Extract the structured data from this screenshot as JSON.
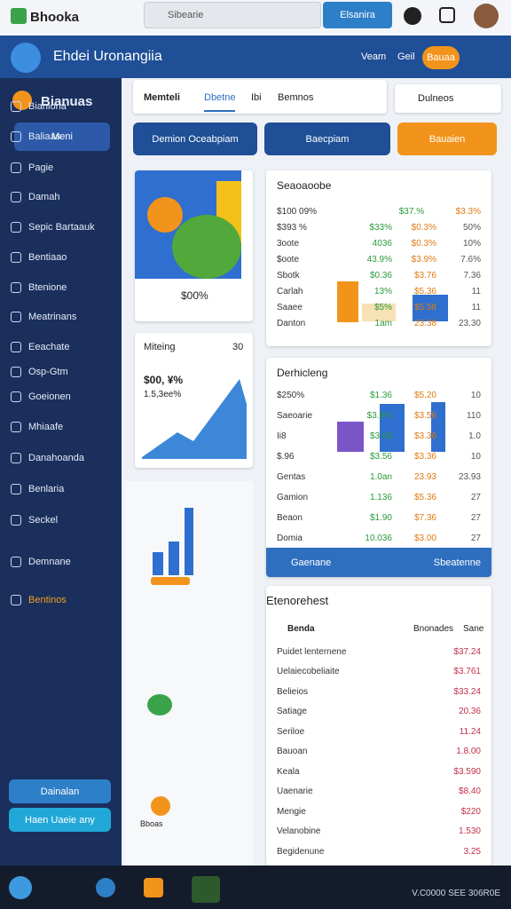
{
  "topbar": {
    "brand": "Bhooka",
    "search": "Sibearie",
    "button": "Elsanira"
  },
  "header": {
    "title": "Ehdei Uronangiia",
    "links": [
      "Veam",
      "Geil"
    ],
    "pill": "Bauaa"
  },
  "sidebar": {
    "title": "Bianuas",
    "menu": "Meni",
    "items": [
      "Bianiona",
      "Baliaas",
      "Pagie",
      "Damah",
      "Sepic Bartaauk",
      "Bentiaao",
      "Btenione",
      "Meatrinans",
      "Eeachate",
      "Osp-Gtm",
      "Goeionen",
      "Mhiaafe",
      "Danahoanda",
      "Benlaria",
      "Seckel",
      "Demnane",
      "Bentinos"
    ],
    "buttons": [
      "Dainalan",
      "Haen Uaeie any"
    ]
  },
  "tabs": {
    "items": [
      "Memteli",
      "Dbetne",
      "Ibi",
      "Bemnos"
    ],
    "right": "Dulneos"
  },
  "actions": [
    "Demion Oceabpiam",
    "Baecpiam",
    "Bauaien"
  ],
  "summary": {
    "value": "$00%"
  },
  "meeting": {
    "title": "Miteing",
    "count": "30",
    "value": "$00, ¥%",
    "sub": "1.5,3ee%"
  },
  "table1": {
    "title": "Seaoaoobe",
    "rows": [
      [
        "$100 09%",
        "$37.%",
        "$3.3%"
      ],
      [
        "$393 %",
        "$33%",
        "$0.3%",
        "50%"
      ],
      [
        "3oote",
        "4036",
        "$0.3%",
        "10%"
      ],
      [
        "$oote",
        "43.9%",
        "$3.9%",
        "7.6%"
      ],
      [
        "Sbotk",
        "$0.36",
        "$3.76",
        "7.36"
      ],
      [
        "Carlah",
        "13%",
        "$5.36",
        "11"
      ],
      [
        "Saaee",
        "$5%",
        "$5.58",
        "11"
      ],
      [
        "Danton",
        "1am",
        "23.38",
        "23.30"
      ]
    ]
  },
  "table2": {
    "title": "Derhicleng",
    "rows": [
      [
        "$250%",
        "$1.36",
        "$5.20",
        "10"
      ],
      [
        "Saeoarie",
        "$3.9%",
        "$3.56",
        "110"
      ],
      [
        "Ii8",
        "$3.06",
        "$3.36",
        "1.0"
      ],
      [
        "$.96",
        "$3.56",
        "$3.36",
        "10"
      ],
      [
        "Gentas",
        "1.0an",
        "23.93",
        "23.93"
      ],
      [
        "Gamion",
        "1.136",
        "$5.36",
        "27"
      ],
      [
        "Beaon",
        "$1.90",
        "$7.36",
        "27"
      ],
      [
        "Domia",
        "10.036",
        "$3.00",
        "27"
      ]
    ],
    "footer": [
      "Gaenane",
      "Sbeatenne"
    ]
  },
  "table3": {
    "title": "Etenorehest",
    "head": [
      "Benda",
      "Bnonades",
      "Sane"
    ],
    "rows": [
      [
        "Puidet lenternene",
        "$37.24"
      ],
      [
        "Uelaiecobeliaite",
        "$3.761"
      ],
      [
        "Belieios",
        "$33.24"
      ],
      [
        "Satiage",
        "20.36"
      ],
      [
        "Seriloe",
        "11.24"
      ],
      [
        "Bauoan",
        "1.8.00"
      ],
      [
        "Keala",
        "$3.590"
      ],
      [
        "Uaenarie",
        "$8.40"
      ],
      [
        "Mengie",
        "$220"
      ],
      [
        "Velanobine",
        "1.530"
      ],
      [
        "Begidenune",
        "3.25"
      ]
    ]
  },
  "chart_note": "Bboas",
  "taskbar": {
    "status": "V.C0000 SEE 306R0E"
  }
}
